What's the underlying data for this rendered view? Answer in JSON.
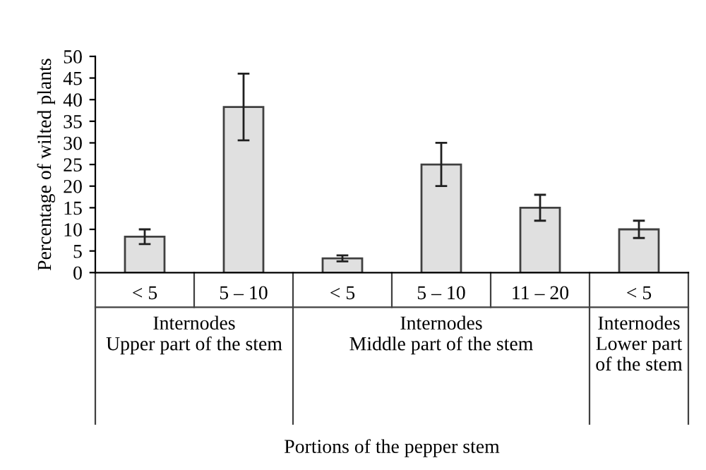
{
  "chart_data": {
    "type": "bar",
    "categories": [
      "< 5",
      "5 – 10",
      "< 5",
      "5 – 10",
      "11 – 20",
      "< 5"
    ],
    "values": [
      8.3,
      38.3,
      3.3,
      25.0,
      15.0,
      10.0
    ],
    "errors": [
      1.7,
      7.7,
      0.7,
      5.0,
      3.0,
      2.0
    ],
    "color": "#e0e0e0",
    "ylabel": "Percentage of wilted plants",
    "annotations": [
      "Internodes\nUpper part of the stem",
      "Internodes\nMiddle part of the stem",
      "Internodes\nLower part\nof the stem",
      "Portions of the pepper stem"
    ],
    "ylim": [
      0,
      50
    ],
    "yticks": [
      0,
      5,
      10,
      15,
      20,
      25,
      30,
      35,
      40,
      45,
      50
    ],
    "grid": false
  }
}
